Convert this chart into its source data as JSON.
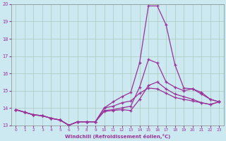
{
  "xlabel": "Windchill (Refroidissement éolien,°C)",
  "background_color": "#cce8f0",
  "grid_color": "#aaccbb",
  "line_color": "#993399",
  "xlim": [
    -0.5,
    23.5
  ],
  "ylim": [
    13,
    20
  ],
  "yticks": [
    13,
    14,
    15,
    16,
    17,
    18,
    19,
    20
  ],
  "xticks": [
    0,
    1,
    2,
    3,
    4,
    5,
    6,
    7,
    8,
    9,
    10,
    11,
    12,
    13,
    14,
    15,
    16,
    17,
    18,
    19,
    20,
    21,
    22,
    23
  ],
  "lines": [
    [
      13.9,
      13.75,
      13.6,
      13.55,
      13.4,
      13.3,
      13.0,
      13.2,
      13.2,
      13.2,
      13.8,
      13.85,
      13.9,
      13.85,
      14.5,
      15.3,
      15.5,
      15.1,
      14.8,
      14.65,
      14.5,
      14.3,
      14.2,
      14.35
    ],
    [
      13.9,
      13.75,
      13.6,
      13.55,
      13.4,
      13.3,
      13.0,
      13.2,
      13.2,
      13.2,
      13.85,
      13.9,
      14.0,
      14.1,
      15.2,
      16.8,
      16.6,
      15.5,
      15.2,
      15.0,
      15.1,
      14.9,
      14.5,
      14.35
    ],
    [
      13.9,
      13.75,
      13.6,
      13.55,
      13.4,
      13.3,
      13.0,
      13.2,
      13.2,
      13.2,
      14.0,
      14.35,
      14.65,
      14.9,
      16.6,
      19.9,
      19.9,
      18.8,
      16.5,
      15.15,
      15.1,
      14.8,
      14.5,
      14.35
    ],
    [
      13.9,
      13.75,
      13.6,
      13.55,
      13.4,
      13.3,
      13.0,
      13.2,
      13.2,
      13.2,
      14.0,
      14.1,
      14.3,
      14.4,
      14.85,
      15.15,
      15.1,
      14.85,
      14.6,
      14.5,
      14.4,
      14.3,
      14.2,
      14.35
    ]
  ]
}
